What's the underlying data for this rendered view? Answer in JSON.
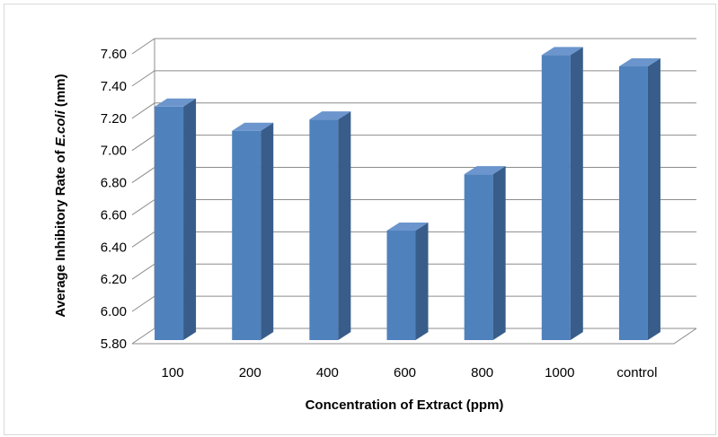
{
  "chart_data": {
    "type": "bar",
    "title": "",
    "xlabel": "Concentration of Extract (ppm)",
    "ylabel": {
      "prefix": "Average Inhibitory  Rate of ",
      "italic": "E.coli",
      "suffix": " (mm)"
    },
    "categories": [
      "100",
      "200",
      "400",
      "600",
      "800",
      "1000",
      "control"
    ],
    "values": [
      7.25,
      7.1,
      7.17,
      6.48,
      6.83,
      7.57,
      7.5
    ],
    "ylim": [
      5.8,
      7.6
    ],
    "yticks": [
      "5.80",
      "6.00",
      "6.20",
      "6.40",
      "6.60",
      "6.80",
      "7.00",
      "7.20",
      "7.40",
      "7.60"
    ],
    "grid": true,
    "legend": "none",
    "style": "3d-column",
    "colors": {
      "bar_front": "#4f81bd",
      "bar_side": "#385d8a",
      "bar_top": "#6b95cc",
      "grid": "#8c8c8c",
      "wall": "#ffffff"
    }
  }
}
